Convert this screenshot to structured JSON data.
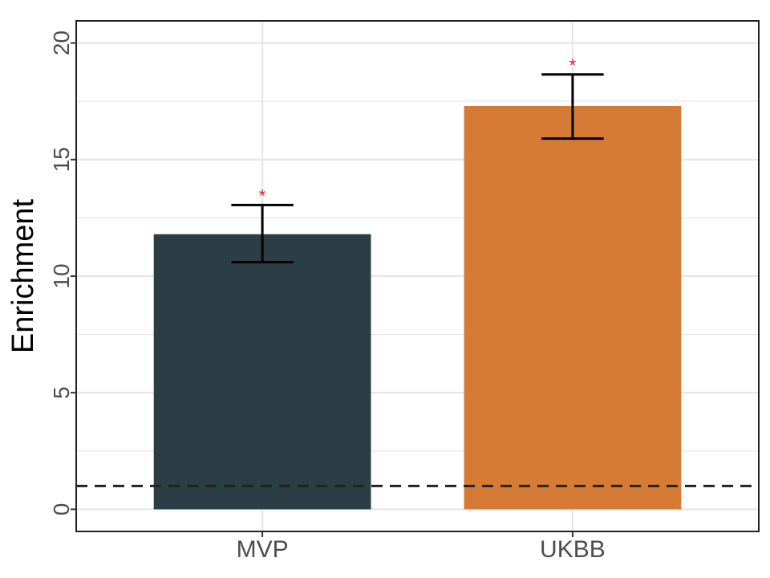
{
  "chart_data": {
    "type": "bar",
    "title": "",
    "xlabel": "",
    "ylabel": "Enrichment",
    "categories": [
      "MVP",
      "UKBB"
    ],
    "values": [
      11.8,
      17.3
    ],
    "error_low": [
      10.6,
      15.9
    ],
    "error_high": [
      13.05,
      18.65
    ],
    "significance": [
      "*",
      "*"
    ],
    "bar_colors": [
      "#2c3e45",
      "#d67b35"
    ],
    "significance_color": "#e02020",
    "reference_line": {
      "y": 1,
      "style": "dashed",
      "color": "#222222"
    },
    "ylim": [
      -0.95,
      20.95
    ],
    "yticks": [
      0,
      5,
      10,
      15,
      20
    ],
    "ytick_labels": [
      "0",
      "5",
      "10",
      "15",
      "20"
    ],
    "grid": true,
    "legend": "none"
  }
}
